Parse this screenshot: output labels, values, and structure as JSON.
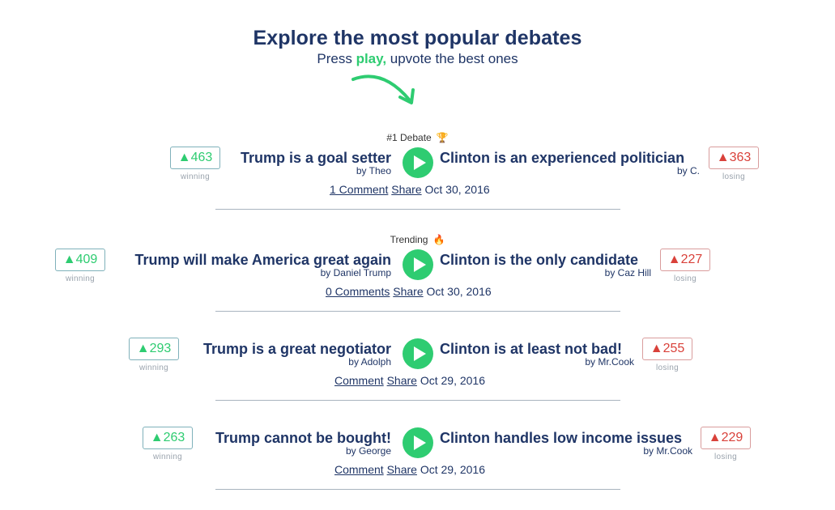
{
  "header": {
    "title": "Explore the most popular debates",
    "subtitle_prefix": "Press ",
    "subtitle_play": "play,",
    "subtitle_suffix": " upvote the best ones"
  },
  "colors": {
    "navy": "#1f3566",
    "green": "#2ecc71",
    "red": "#d9413a"
  },
  "debates": [
    {
      "tag": "#1 Debate",
      "tag_icon": "trophy-icon",
      "left": {
        "votes": "▲463",
        "status": "winning",
        "statement": "Trump is a goal setter",
        "author": "by Theo"
      },
      "right": {
        "votes": "▲363",
        "status": "losing",
        "statement": "Clinton is an experienced politician",
        "author": "by C."
      },
      "comments": "1 Comment",
      "share": "Share",
      "date": "Oct 30, 2016"
    },
    {
      "tag": "Trending",
      "tag_icon": "fire-icon",
      "left": {
        "votes": "▲409",
        "status": "winning",
        "statement": "Trump will make America great again",
        "author": "by Daniel Trump"
      },
      "right": {
        "votes": "▲227",
        "status": "losing",
        "statement": "Clinton is the only candidate",
        "author": "by Caz Hill"
      },
      "comments": "0 Comments",
      "share": "Share",
      "date": "Oct 30, 2016"
    },
    {
      "tag": "",
      "left": {
        "votes": "▲293",
        "status": "winning",
        "statement": "Trump is a great negotiator",
        "author": "by Adolph"
      },
      "right": {
        "votes": "▲255",
        "status": "losing",
        "statement": "Clinton is at least not bad!",
        "author": "by Mr.Cook"
      },
      "comments": "Comment",
      "share": "Share",
      "date": "Oct 29, 2016"
    },
    {
      "tag": "",
      "left": {
        "votes": "▲263",
        "status": "winning",
        "statement": "Trump cannot be bought!",
        "author": "by George"
      },
      "right": {
        "votes": "▲229",
        "status": "losing",
        "statement": "Clinton handles low income issues",
        "author": "by Mr.Cook"
      },
      "comments": "Comment",
      "share": "Share",
      "date": "Oct 29, 2016"
    }
  ]
}
